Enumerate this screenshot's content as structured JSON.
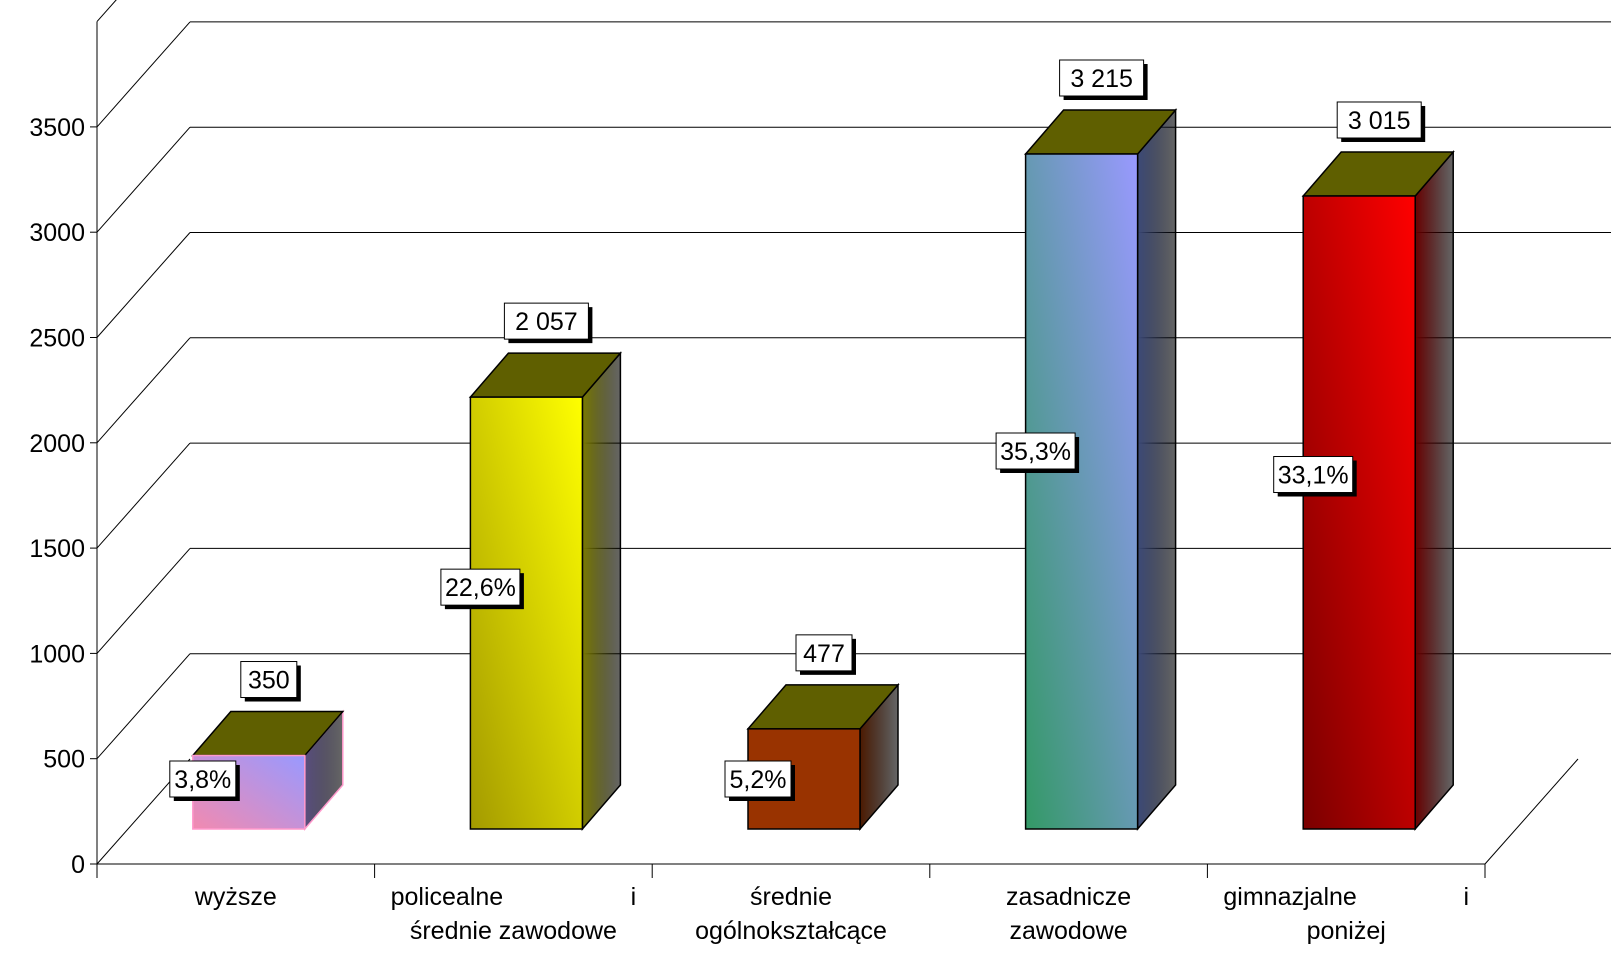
{
  "chart_data": {
    "type": "bar",
    "title": "",
    "xlabel": "",
    "ylabel": "",
    "ylim": [
      0,
      4000
    ],
    "yticks": [
      0,
      500,
      1000,
      1500,
      2000,
      2500,
      3000,
      3500
    ],
    "ytick_labels": [
      "0",
      "500",
      "1000",
      "1500",
      "2000",
      "2500",
      "3000",
      "3500"
    ],
    "grid": true,
    "three_d": true,
    "legend": "none",
    "categories": [
      [
        "wyższe"
      ],
      [
        "policealne i",
        "średnie zawodowe"
      ],
      [
        "średnie",
        "ogólnokształcące"
      ],
      [
        "zasadnicze",
        "zawodowe"
      ],
      [
        "gimnazjalne i",
        "poniżej"
      ]
    ],
    "values": [
      350,
      2057,
      477,
      3215,
      3015
    ],
    "value_labels": [
      "350",
      "2 057",
      "477",
      "3 215",
      "3 015"
    ],
    "percent_labels": [
      "3,8%",
      "22,6%",
      "5,2%",
      "35,3%",
      "33,1%"
    ],
    "top_color": "#5f5f00",
    "bar_colors": [
      {
        "front_from": "#f28ab0",
        "front_to": "#9999ff",
        "side": "#5a4f80",
        "edge": "#ff99cc"
      },
      {
        "front_from": "#a39a00",
        "front_to": "#ffff00",
        "side": "#7a7a00",
        "edge": "#000000"
      },
      {
        "front_from": "#993300",
        "front_to": "#993300",
        "side": "#4d1a00",
        "edge": "#000000"
      },
      {
        "front_from": "#339966",
        "front_to": "#9999ff",
        "side": "#3c4a78",
        "edge": "#000000"
      },
      {
        "front_from": "#7a0000",
        "front_to": "#ff0000",
        "side": "#6b0000",
        "edge": "#000000"
      }
    ]
  }
}
